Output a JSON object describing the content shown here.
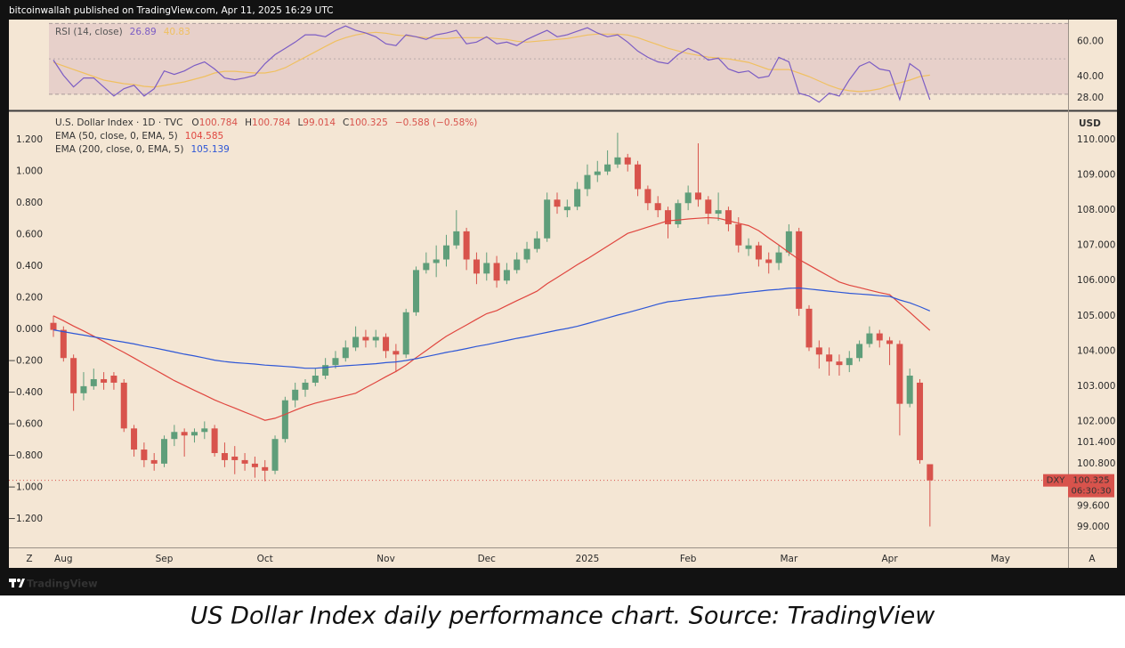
{
  "header": {
    "text": "bitcoinwallah published on TradingView.com, Apr 11, 2025 16:29 UTC"
  },
  "chart_data": [
    {
      "type": "candlestick",
      "symbol": "U.S. Dollar Index · 1D · TVC",
      "ohlc_prefixes": [
        "O",
        "H",
        "L",
        "C"
      ],
      "change": "−0.588 (−0.58%)",
      "currency": "USD",
      "last_price_symbol": "DXY",
      "countdown": "06:30:30",
      "up_color": "#5f9e7a",
      "down_color": "#d8534c",
      "grid": false,
      "categories": [
        null,
        "Aug",
        null,
        null,
        null,
        null,
        null,
        null,
        null,
        null,
        null,
        "Sep",
        null,
        null,
        null,
        null,
        null,
        null,
        null,
        null,
        null,
        "Oct",
        null,
        null,
        null,
        null,
        null,
        null,
        null,
        null,
        null,
        null,
        null,
        "Nov",
        null,
        null,
        null,
        null,
        null,
        null,
        null,
        null,
        null,
        "Dec",
        null,
        null,
        null,
        null,
        null,
        null,
        null,
        null,
        null,
        "2025",
        null,
        null,
        null,
        null,
        null,
        null,
        null,
        null,
        null,
        "Feb",
        null,
        null,
        null,
        null,
        null,
        null,
        null,
        null,
        null,
        "Mar",
        null,
        null,
        null,
        null,
        null,
        null,
        null,
        null,
        null,
        "Apr",
        null,
        null,
        null,
        null,
        null,
        null,
        null,
        null,
        null,
        null,
        "May",
        null
      ],
      "open": [
        104.8,
        104.6,
        103.8,
        102.8,
        103.0,
        103.2,
        103.3,
        103.1,
        101.8,
        101.2,
        100.9,
        100.8,
        101.5,
        101.7,
        101.6,
        101.7,
        101.8,
        101.1,
        101.0,
        100.9,
        100.8,
        100.7,
        100.6,
        101.5,
        102.6,
        102.9,
        103.1,
        103.3,
        103.6,
        103.8,
        104.1,
        104.4,
        104.3,
        104.4,
        104.0,
        103.9,
        105.1,
        106.3,
        106.5,
        106.6,
        107.0,
        107.4,
        106.6,
        106.2,
        106.5,
        106.0,
        106.3,
        106.6,
        106.9,
        107.2,
        108.3,
        108.0,
        108.1,
        108.6,
        109.0,
        109.1,
        109.3,
        109.5,
        109.3,
        108.6,
        108.2,
        108.0,
        107.6,
        108.2,
        108.5,
        108.3,
        107.9,
        108.0,
        107.6,
        106.9,
        107.0,
        106.6,
        106.5,
        106.8,
        107.4,
        105.2,
        104.1,
        103.9,
        103.7,
        103.6,
        103.8,
        104.2,
        104.5,
        104.3,
        104.2,
        102.5,
        103.1,
        100.784,
        null,
        null,
        null,
        null,
        null,
        null,
        null,
        null
      ],
      "high": [
        105.0,
        104.7,
        103.9,
        103.4,
        103.5,
        103.4,
        103.4,
        103.2,
        101.9,
        101.4,
        101.1,
        101.6,
        101.9,
        101.8,
        101.8,
        102.0,
        101.9,
        101.4,
        101.3,
        101.1,
        101.0,
        100.9,
        101.6,
        102.7,
        103.1,
        103.2,
        103.5,
        103.8,
        104.0,
        104.3,
        104.7,
        104.6,
        104.6,
        104.5,
        104.2,
        105.2,
        106.4,
        106.8,
        107.0,
        107.3,
        108.0,
        107.5,
        106.8,
        106.8,
        106.7,
        106.5,
        106.8,
        107.1,
        107.4,
        108.5,
        108.5,
        108.3,
        108.8,
        109.3,
        109.4,
        109.7,
        110.2,
        109.6,
        109.4,
        108.7,
        108.4,
        108.1,
        108.3,
        108.7,
        109.9,
        108.4,
        108.5,
        108.1,
        107.8,
        107.2,
        107.1,
        106.8,
        107.0,
        107.6,
        107.5,
        105.3,
        104.3,
        104.1,
        103.9,
        104.0,
        104.3,
        104.7,
        104.6,
        104.4,
        104.3,
        103.5,
        103.2,
        100.784,
        null,
        null,
        null,
        null,
        null,
        null,
        null,
        null
      ],
      "low": [
        104.4,
        103.7,
        102.3,
        102.6,
        102.9,
        102.9,
        102.9,
        101.7,
        101.0,
        100.7,
        100.6,
        100.7,
        101.3,
        101.0,
        101.4,
        101.5,
        101.0,
        100.7,
        100.5,
        100.6,
        100.4,
        100.3,
        100.5,
        101.4,
        102.4,
        102.7,
        103.0,
        103.2,
        103.5,
        103.7,
        104.0,
        104.1,
        104.1,
        103.8,
        103.4,
        103.8,
        105.0,
        106.2,
        106.1,
        106.4,
        106.9,
        106.3,
        105.9,
        106.0,
        105.8,
        105.9,
        106.2,
        106.5,
        106.8,
        107.1,
        107.9,
        107.8,
        108.0,
        108.4,
        108.8,
        109.0,
        109.2,
        109.1,
        108.4,
        108.0,
        107.8,
        107.2,
        107.5,
        108.0,
        108.1,
        107.6,
        107.7,
        107.4,
        106.8,
        106.7,
        106.4,
        106.2,
        106.3,
        106.7,
        105.0,
        104.0,
        103.5,
        103.3,
        103.3,
        103.4,
        103.7,
        104.1,
        104.1,
        103.6,
        101.6,
        102.4,
        100.8,
        99.014,
        null,
        null,
        null,
        null,
        null,
        null,
        null,
        null
      ],
      "close": [
        104.6,
        103.8,
        102.8,
        103.0,
        103.2,
        103.1,
        103.1,
        101.8,
        101.2,
        100.9,
        100.8,
        101.5,
        101.7,
        101.6,
        101.7,
        101.8,
        101.1,
        100.9,
        100.9,
        100.8,
        100.7,
        100.6,
        101.5,
        102.6,
        102.9,
        103.1,
        103.3,
        103.6,
        103.8,
        104.1,
        104.4,
        104.3,
        104.4,
        104.0,
        103.9,
        105.1,
        106.3,
        106.5,
        106.6,
        107.0,
        107.4,
        106.6,
        106.2,
        106.5,
        106.0,
        106.3,
        106.6,
        106.9,
        107.2,
        108.3,
        108.1,
        108.1,
        108.6,
        109.0,
        109.1,
        109.3,
        109.5,
        109.3,
        108.6,
        108.2,
        108.0,
        107.6,
        108.2,
        108.5,
        108.3,
        107.9,
        108.0,
        107.6,
        107.0,
        107.0,
        106.6,
        106.5,
        106.8,
        107.4,
        105.2,
        104.1,
        103.9,
        103.7,
        103.6,
        103.8,
        104.2,
        104.5,
        104.3,
        104.2,
        102.5,
        103.3,
        100.9,
        100.325,
        null,
        null,
        null,
        null,
        null,
        null,
        null,
        null
      ],
      "series": [
        {
          "name": "EMA (50, close, 0, EMA, 5)",
          "color": "#e0463f",
          "values": [
            105.0,
            104.86,
            104.71,
            104.57,
            104.42,
            104.27,
            104.11,
            103.96,
            103.8,
            103.64,
            103.48,
            103.32,
            103.16,
            103.02,
            102.88,
            102.75,
            102.61,
            102.49,
            102.38,
            102.26,
            102.15,
            102.03,
            102.09,
            102.2,
            102.32,
            102.43,
            102.52,
            102.59,
            102.66,
            102.73,
            102.8,
            102.96,
            103.11,
            103.27,
            103.42,
            103.6,
            103.81,
            104.01,
            104.22,
            104.42,
            104.58,
            104.74,
            104.9,
            105.06,
            105.15,
            105.29,
            105.43,
            105.56,
            105.7,
            105.91,
            106.09,
            106.27,
            106.45,
            106.62,
            106.8,
            106.98,
            107.16,
            107.34,
            107.43,
            107.52,
            107.61,
            107.7,
            107.72,
            107.75,
            107.77,
            107.79,
            107.77,
            107.7,
            107.63,
            107.56,
            107.42,
            107.21,
            107.01,
            106.8,
            106.6,
            106.44,
            106.28,
            106.12,
            105.96,
            105.87,
            105.8,
            105.73,
            105.66,
            105.6,
            105.35,
            105.1,
            104.84,
            104.585,
            null,
            null,
            null,
            null,
            null,
            null,
            null,
            null
          ]
        },
        {
          "name": "EMA (200, close, 0, EMA, 5)",
          "color": "#2e57d6",
          "values": [
            104.6,
            104.55,
            104.5,
            104.45,
            104.4,
            104.35,
            104.3,
            104.25,
            104.2,
            104.14,
            104.09,
            104.03,
            103.97,
            103.91,
            103.86,
            103.8,
            103.74,
            103.7,
            103.67,
            103.65,
            103.63,
            103.6,
            103.58,
            103.56,
            103.54,
            103.51,
            103.51,
            103.53,
            103.56,
            103.58,
            103.6,
            103.62,
            103.64,
            103.67,
            103.69,
            103.73,
            103.78,
            103.84,
            103.9,
            103.96,
            104.01,
            104.07,
            104.13,
            104.18,
            104.24,
            104.3,
            104.36,
            104.41,
            104.47,
            104.53,
            104.59,
            104.64,
            104.7,
            104.78,
            104.86,
            104.94,
            105.02,
            105.09,
            105.17,
            105.25,
            105.33,
            105.4,
            105.43,
            105.47,
            105.5,
            105.54,
            105.57,
            105.6,
            105.64,
            105.67,
            105.7,
            105.73,
            105.75,
            105.78,
            105.79,
            105.76,
            105.73,
            105.7,
            105.67,
            105.64,
            105.62,
            105.6,
            105.57,
            105.55,
            105.45,
            105.37,
            105.26,
            105.139,
            null,
            null,
            null,
            null,
            null,
            null,
            null,
            null
          ]
        }
      ],
      "ylim": [
        98.42,
        110.76
      ],
      "yticks": [
        {
          "value": 110,
          "label": "110.000"
        },
        {
          "value": 109,
          "label": "109.000"
        },
        {
          "value": 108,
          "label": "108.000"
        },
        {
          "value": 107,
          "label": "107.000"
        },
        {
          "value": 106,
          "label": "106.000"
        },
        {
          "value": 105,
          "label": "105.000"
        },
        {
          "value": 104,
          "label": "104.000"
        },
        {
          "value": 103,
          "label": "103.000"
        },
        {
          "value": 102,
          "label": "102.000"
        },
        {
          "value": 101.4,
          "label": "101.400"
        },
        {
          "value": 100.8,
          "label": "100.800"
        },
        {
          "value": 99.6,
          "label": "99.600"
        },
        {
          "value": 99,
          "label": "99.000"
        }
      ],
      "y2lim": [
        -1.38,
        1.37
      ],
      "y2ticks": [
        {
          "value": 1.2,
          "label": "1.200"
        },
        {
          "value": 1,
          "label": "1.000"
        },
        {
          "value": 0.8,
          "label": "0.800"
        },
        {
          "value": 0.6,
          "label": "0.600"
        },
        {
          "value": 0.4,
          "label": "0.400"
        },
        {
          "value": 0.2,
          "label": "0.200"
        },
        {
          "value": 0,
          "label": "0.000"
        },
        {
          "value": -0.2,
          "label": "−0.200"
        },
        {
          "value": -0.4,
          "label": "−0.400"
        },
        {
          "value": -0.6,
          "label": "−0.600"
        },
        {
          "value": -0.8,
          "label": "−0.800"
        },
        {
          "value": -1,
          "label": "−1.000"
        },
        {
          "value": -1.2,
          "label": "−1.200"
        }
      ]
    },
    {
      "type": "line",
      "title": "RSI (14, close)",
      "band": [
        30,
        70
      ],
      "midline": 50,
      "band_color": "#c9a0b4",
      "series": [
        {
          "color": "#7b5cc4",
          "values": [
            49.3,
            40.7,
            34.1,
            39.2,
            39.2,
            34.1,
            29.0,
            33.1,
            35.1,
            29.0,
            33.1,
            43.2,
            41.2,
            43.2,
            46.3,
            48.3,
            44.3,
            39.2,
            38.2,
            39.2,
            40.7,
            47.3,
            52.4,
            55.9,
            59.5,
            63.6,
            63.6,
            62.5,
            66.1,
            68.6,
            66.1,
            64.6,
            62.5,
            58.5,
            57.5,
            63.6,
            62.5,
            61.0,
            63.6,
            64.6,
            66.1,
            58.5,
            59.5,
            62.5,
            58.5,
            59.5,
            57.5,
            61.0,
            63.6,
            66.1,
            62.5,
            63.6,
            65.6,
            67.6,
            64.6,
            62.5,
            63.6,
            59.5,
            54.4,
            50.9,
            48.3,
            47.3,
            52.4,
            55.9,
            53.4,
            49.3,
            50.4,
            44.3,
            42.2,
            43.2,
            39.2,
            40.2,
            50.9,
            48.3,
            30.6,
            29.0,
            25.5,
            30.6,
            29.0,
            38.2,
            45.8,
            48.3,
            44.3,
            43.2,
            27.0,
            47.3,
            43.2,
            26.89,
            null,
            null,
            null,
            null,
            null,
            null,
            null,
            null
          ]
        },
        {
          "color": "#f0c060",
          "values": [
            48,
            46,
            44,
            42,
            40,
            38,
            37,
            36,
            35.5,
            34.5,
            34,
            35,
            36,
            37,
            38.5,
            40,
            42,
            43,
            43,
            42.5,
            42,
            42,
            43,
            45,
            48,
            51,
            54,
            57,
            60,
            62,
            63.5,
            64.5,
            65,
            64.5,
            63.5,
            63,
            62.5,
            62,
            61.5,
            61.5,
            62,
            62,
            62,
            62,
            61.5,
            61,
            60,
            59.5,
            60,
            60.5,
            61,
            61.5,
            62.5,
            63.5,
            64,
            64,
            64,
            63.5,
            62,
            60,
            58,
            56,
            54.5,
            53,
            52,
            51,
            50.5,
            50,
            49,
            48,
            46,
            44,
            44,
            44,
            42,
            40,
            37.5,
            35,
            33,
            32,
            31.5,
            32,
            33,
            35,
            36.5,
            38,
            40,
            40.83,
            null,
            null,
            null,
            null,
            null,
            null,
            null,
            null
          ]
        }
      ],
      "ylim": [
        21.9,
        71.2
      ],
      "yticks": [
        {
          "value": 60,
          "label": "60.00"
        },
        {
          "value": 40,
          "label": "40.00"
        },
        {
          "value": 28,
          "label": "28.00"
        }
      ]
    }
  ],
  "controls": {
    "left": "Z",
    "right": "A"
  },
  "footer": {
    "brand": "TradingView"
  },
  "caption": "US Dollar Index daily performance chart. Source: TradingView"
}
